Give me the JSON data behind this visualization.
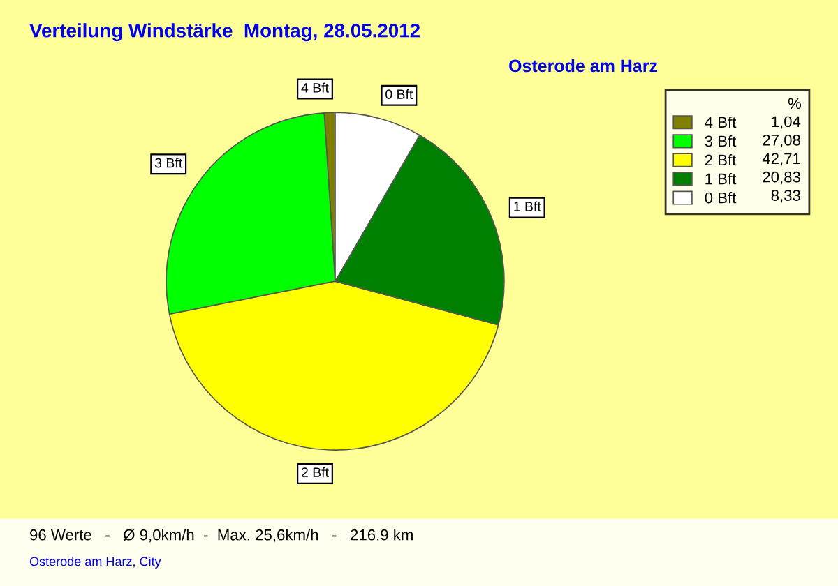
{
  "chart_data": {
    "type": "pie",
    "title": "Verteilung Windstärke  Montag, 28.05.2012",
    "subtitle": "Osterode am Harz",
    "categories": [
      "4 Bft",
      "3 Bft",
      "2 Bft",
      "1 Bft",
      "0 Bft"
    ],
    "values": [
      1.04,
      27.08,
      42.71,
      20.83,
      8.33
    ],
    "value_labels": [
      "1,04",
      "27,08",
      "42,71",
      "20,83",
      "8,33"
    ],
    "colors": [
      "#808000",
      "#00ff00",
      "#ffff00",
      "#008000",
      "#ffffff"
    ],
    "legend_title": "%",
    "legend": "top right",
    "annotations": [
      "96 Werte   -   Ø 9,0km/h  -  Max. 25,6km/h   -   216.9 km",
      "Osterode am Harz, City"
    ]
  }
}
